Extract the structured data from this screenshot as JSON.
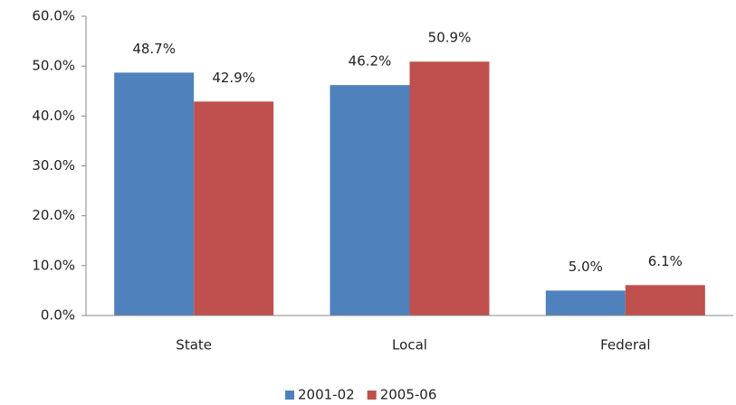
{
  "chart_data": {
    "type": "bar",
    "categories": [
      "State",
      "Local",
      "Federal"
    ],
    "series": [
      {
        "name": "2001-02",
        "color": "#4f81bd",
        "values": [
          48.7,
          46.2,
          5.0
        ],
        "value_labels": [
          "48.7%",
          "46.2%",
          "5.0%"
        ]
      },
      {
        "name": "2005-06",
        "color": "#c0504d",
        "values": [
          42.9,
          50.9,
          6.1
        ],
        "value_labels": [
          "42.9%",
          "50.9%",
          "6.1%"
        ]
      }
    ],
    "ylim": [
      0,
      60
    ],
    "yticks": [
      {
        "value": 0,
        "label": "0.0%"
      },
      {
        "value": 10,
        "label": "10.0%"
      },
      {
        "value": 20,
        "label": "20.0%"
      },
      {
        "value": 30,
        "label": "30.0%"
      },
      {
        "value": 40,
        "label": "40.0%"
      },
      {
        "value": 50,
        "label": "50.0%"
      },
      {
        "value": 60,
        "label": "60.0%"
      }
    ],
    "grid": false,
    "legend": "bottom"
  }
}
